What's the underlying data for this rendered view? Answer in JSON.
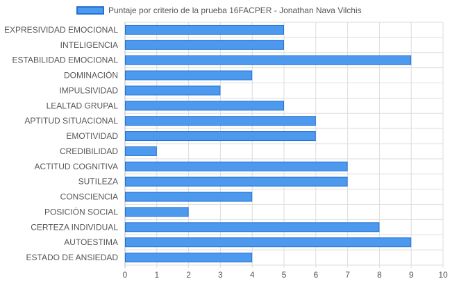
{
  "chart_data": {
    "type": "bar",
    "orientation": "horizontal",
    "series": [
      {
        "name": "Puntaje por criterio de la prueba 16FACPER - Jonathan Nava Vilchis",
        "values": [
          5,
          5,
          9,
          4,
          3,
          5,
          6,
          6,
          1,
          7,
          7,
          4,
          2,
          8,
          9,
          4
        ]
      }
    ],
    "categories": [
      "EXPRESIVIDAD EMOCIONAL",
      "INTELIGENCIA",
      "ESTABILIDAD EMOCIONAL",
      "DOMINACIÓN",
      "IMPULSIVIDAD",
      "LEALTAD GRUPAL",
      "APTITUD SITUACIONAL",
      "EMOTIVIDAD",
      "CREDIBILIDAD",
      "ACTITUD COGNITIVA",
      "SUTILEZA",
      "CONSCIENCIA",
      "POSICIÓN SOCIAL",
      "CERTEZA INDIVIDUAL",
      "AUTOESTIMA",
      "ESTADO DE ANSIEDAD"
    ],
    "xlim": [
      0,
      10
    ],
    "xticks": [
      "0",
      "1",
      "2",
      "3",
      "4",
      "5",
      "6",
      "7",
      "8",
      "9",
      "10"
    ],
    "grid": true,
    "legend_position": "top",
    "colors": {
      "bar_fill": "#4d99ee",
      "bar_border": "#2271d6",
      "grid": "#dddddd",
      "axis_line": "#bbbbbb",
      "label_text": "#555555"
    }
  }
}
